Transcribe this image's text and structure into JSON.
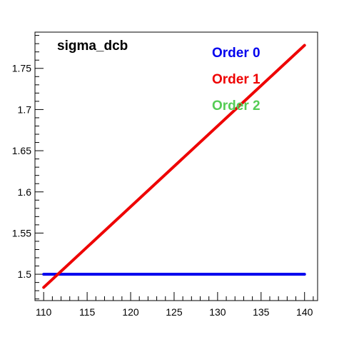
{
  "chart_data": {
    "type": "line",
    "title": "sigma_dcb",
    "xlabel": "",
    "ylabel": "",
    "xlim": [
      109,
      141.5
    ],
    "ylim": [
      1.468,
      1.794
    ],
    "x_ticks": [
      110,
      115,
      120,
      125,
      130,
      135,
      140
    ],
    "x_tick_labels": [
      "110",
      "115",
      "120",
      "125",
      "130",
      "135",
      "140"
    ],
    "y_ticks": [
      1.5,
      1.55,
      1.6,
      1.65,
      1.7,
      1.75
    ],
    "y_tick_labels": [
      "1.5",
      "1.55",
      "1.6",
      "1.65",
      "1.7",
      "1.75"
    ],
    "grid": false,
    "legend_position": "top-right",
    "series": [
      {
        "name": "Order 0",
        "color": "#0000ee",
        "x": [
          110,
          140
        ],
        "y": [
          1.5,
          1.5
        ]
      },
      {
        "name": "Order 1",
        "color": "#ee0000",
        "x": [
          110,
          140
        ],
        "y": [
          1.484,
          1.778
        ]
      },
      {
        "name": "Order 2",
        "color": "#55cc55",
        "x": [],
        "y": []
      }
    ]
  }
}
